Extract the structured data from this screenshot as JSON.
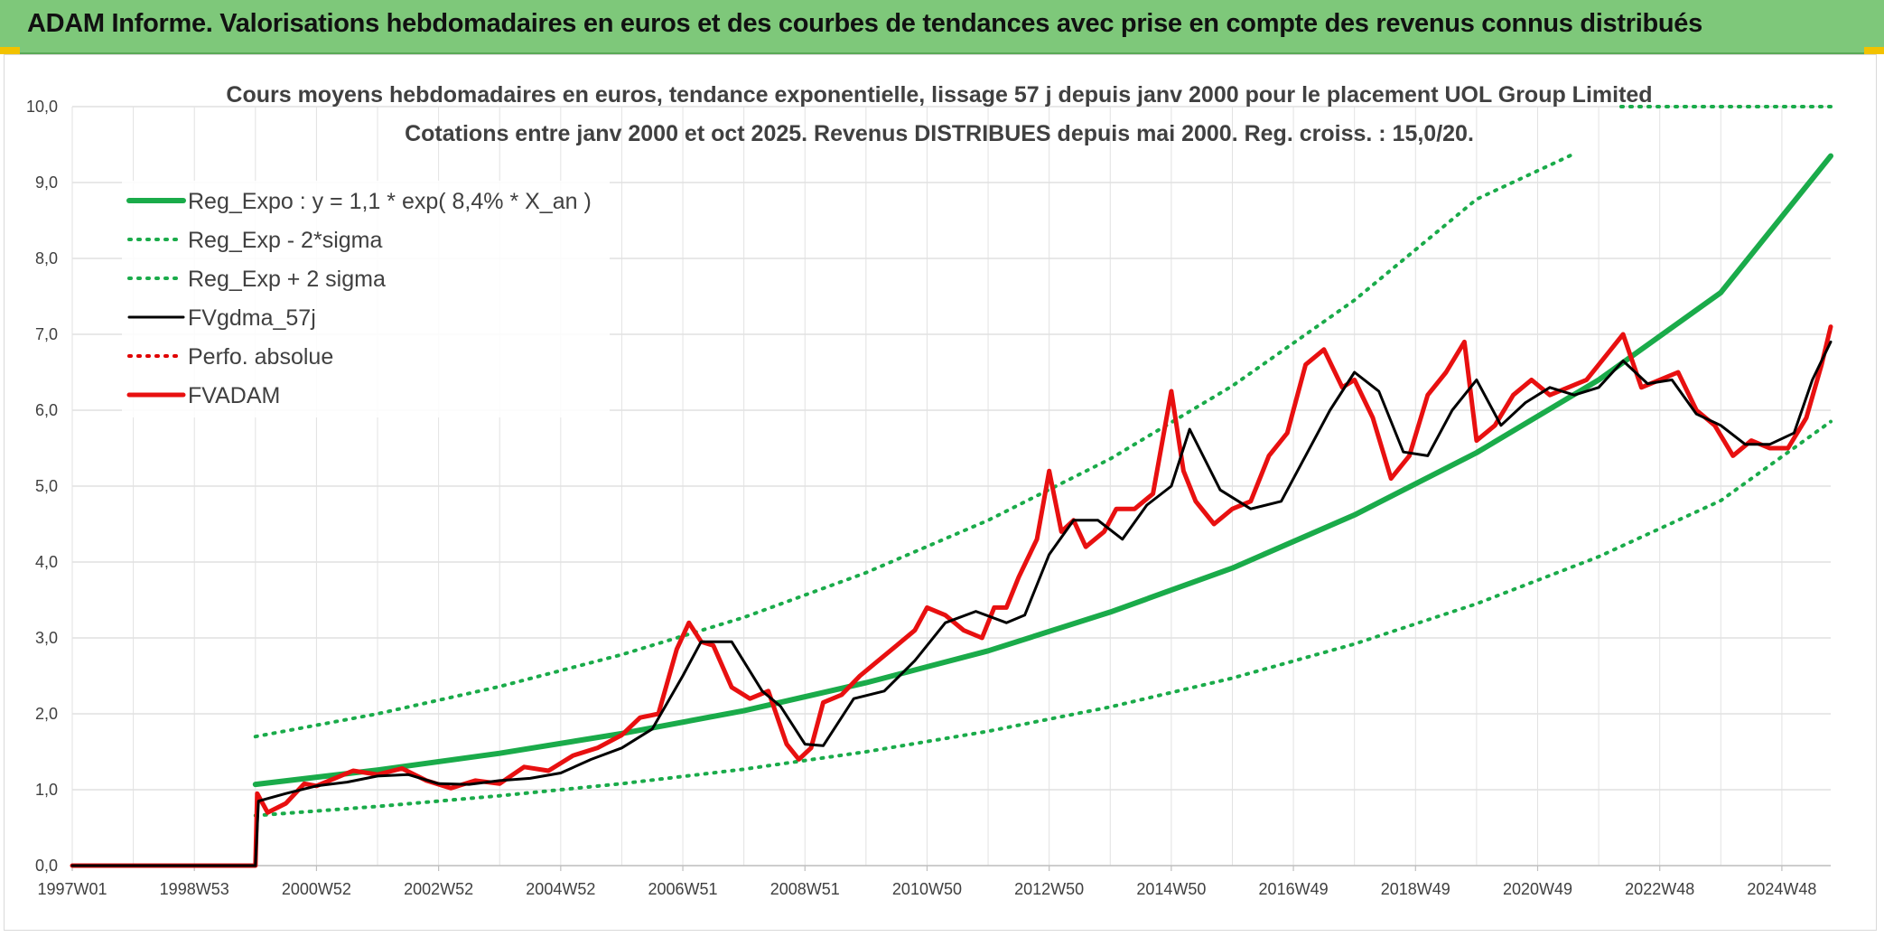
{
  "banner": {
    "title": "ADAM Informe. Valorisations hebdomadaires en euros et des courbes de tendances avec prise en compte des revenus connus distribués"
  },
  "colors": {
    "banner": "#7ec87a",
    "reg_expo": "#1aab4a",
    "band": "#1aab4a",
    "fvgdma": "#000000",
    "perfo": "#e00000",
    "fvadam": "#e81010"
  },
  "chart_data": {
    "type": "line",
    "title": "Cours moyens hebdomadaires en euros, tendance exponentielle, lissage 57 j depuis janv 2000 pour le placement UOL Group Limited",
    "subtitle": "Cotations entre janv 2000 et oct 2025. Revenus DISTRIBUES depuis mai 2000. Reg. croiss. : 15,0/20.",
    "ylim": [
      0,
      10
    ],
    "y_ticks": [
      "0,0",
      "1,0",
      "2,0",
      "3,0",
      "4,0",
      "5,0",
      "6,0",
      "7,0",
      "8,0",
      "9,0",
      "10,0"
    ],
    "x_range": [
      1997.0,
      2025.8
    ],
    "x_ticks": [
      {
        "label": "1997W01",
        "x": 1997.0
      },
      {
        "label": "1998W53",
        "x": 1999.0
      },
      {
        "label": "2000W52",
        "x": 2001.0
      },
      {
        "label": "2002W52",
        "x": 2003.0
      },
      {
        "label": "2004W52",
        "x": 2005.0
      },
      {
        "label": "2006W51",
        "x": 2007.0
      },
      {
        "label": "2008W51",
        "x": 2009.0
      },
      {
        "label": "2010W50",
        "x": 2011.0
      },
      {
        "label": "2012W50",
        "x": 2013.0
      },
      {
        "label": "2014W50",
        "x": 2015.0
      },
      {
        "label": "2016W49",
        "x": 2017.0
      },
      {
        "label": "2018W49",
        "x": 2019.0
      },
      {
        "label": "2020W49",
        "x": 2021.0
      },
      {
        "label": "2022W48",
        "x": 2023.0
      },
      {
        "label": "2024W48",
        "x": 2025.0
      }
    ],
    "grid": true,
    "legend_position": "top-left",
    "series": [
      {
        "name": "Reg_Expo : y = 1,1 * exp( 8,4% *  X_an )",
        "style": "solid-thick",
        "color": "#1aab4a",
        "x": [
          2000.0,
          2002.0,
          2004.0,
          2006.0,
          2008.0,
          2010.0,
          2012.0,
          2014.0,
          2016.0,
          2018.0,
          2020.0,
          2022.0,
          2024.0,
          2025.8
        ],
        "y": [
          1.07,
          1.26,
          1.48,
          1.74,
          2.04,
          2.41,
          2.83,
          3.34,
          3.92,
          4.62,
          5.44,
          6.4,
          7.55,
          9.35
        ]
      },
      {
        "name": "Reg_Exp - 2*sigma",
        "style": "dotted",
        "color": "#1aab4a",
        "x": [
          2000.0,
          2002.0,
          2004.0,
          2006.0,
          2008.0,
          2010.0,
          2012.0,
          2014.0,
          2016.0,
          2018.0,
          2020.0,
          2022.0,
          2024.0,
          2025.8
        ],
        "y": [
          0.66,
          0.78,
          0.92,
          1.08,
          1.27,
          1.5,
          1.77,
          2.09,
          2.47,
          2.92,
          3.45,
          4.07,
          4.81,
          5.85
        ]
      },
      {
        "name": "Reg_Exp + 2 sigma",
        "style": "dotted",
        "color": "#1aab4a",
        "x": [
          2000.0,
          2002.0,
          2004.0,
          2006.0,
          2008.0,
          2010.0,
          2012.0,
          2014.0,
          2016.0,
          2018.0,
          2020.0,
          2021.6
        ],
        "y": [
          1.7,
          2.0,
          2.36,
          2.78,
          3.27,
          3.86,
          4.55,
          5.36,
          6.32,
          7.45,
          8.78,
          9.38
        ]
      },
      {
        "name": "FVgdma_57j",
        "style": "solid",
        "color": "#000000",
        "x": [
          1997.0,
          2000.0,
          2000.05,
          2000.5,
          2001.0,
          2001.5,
          2002.0,
          2002.5,
          2003.0,
          2003.5,
          2004.0,
          2004.5,
          2005.0,
          2005.5,
          2006.0,
          2006.5,
          2007.0,
          2007.3,
          2007.8,
          2008.3,
          2008.6,
          2009.0,
          2009.3,
          2009.8,
          2010.3,
          2010.8,
          2011.3,
          2011.8,
          2012.3,
          2012.6,
          2013.0,
          2013.4,
          2013.8,
          2014.2,
          2014.6,
          2015.0,
          2015.3,
          2015.8,
          2016.3,
          2016.8,
          2017.2,
          2017.6,
          2018.0,
          2018.4,
          2018.8,
          2019.2,
          2019.6,
          2020.0,
          2020.4,
          2020.8,
          2021.2,
          2021.6,
          2022.0,
          2022.4,
          2022.8,
          2023.2,
          2023.6,
          2024.0,
          2024.4,
          2024.8,
          2025.2,
          2025.5,
          2025.8
        ],
        "y": [
          0.0,
          0.0,
          0.85,
          0.95,
          1.05,
          1.1,
          1.18,
          1.2,
          1.08,
          1.07,
          1.12,
          1.15,
          1.22,
          1.4,
          1.55,
          1.8,
          2.5,
          2.95,
          2.95,
          2.3,
          2.1,
          1.6,
          1.58,
          2.2,
          2.3,
          2.7,
          3.2,
          3.35,
          3.2,
          3.3,
          4.1,
          4.55,
          4.55,
          4.3,
          4.75,
          5.0,
          5.75,
          4.95,
          4.7,
          4.8,
          5.4,
          6.0,
          6.5,
          6.25,
          5.45,
          5.4,
          6.0,
          6.4,
          5.8,
          6.1,
          6.3,
          6.2,
          6.3,
          6.65,
          6.35,
          6.4,
          5.95,
          5.8,
          5.55,
          5.55,
          5.7,
          6.4,
          6.9
        ]
      },
      {
        "name": "Perfo. absolue",
        "style": "dotted",
        "color": "#e00000",
        "x": [],
        "y": []
      },
      {
        "name": "FVADAM",
        "style": "solid-thick",
        "color": "#e81010",
        "x": [
          1997.0,
          2000.0,
          2000.03,
          2000.2,
          2000.5,
          2000.8,
          2001.0,
          2001.3,
          2001.6,
          2002.0,
          2002.4,
          2002.8,
          2003.2,
          2003.6,
          2004.0,
          2004.4,
          2004.8,
          2005.2,
          2005.6,
          2006.0,
          2006.3,
          2006.6,
          2006.9,
          2007.1,
          2007.3,
          2007.5,
          2007.8,
          2008.1,
          2008.4,
          2008.7,
          2008.9,
          2009.1,
          2009.3,
          2009.6,
          2009.9,
          2010.2,
          2010.5,
          2010.8,
          2011.0,
          2011.3,
          2011.6,
          2011.9,
          2012.1,
          2012.3,
          2012.5,
          2012.8,
          2013.0,
          2013.2,
          2013.4,
          2013.6,
          2013.9,
          2014.1,
          2014.4,
          2014.7,
          2015.0,
          2015.2,
          2015.4,
          2015.7,
          2016.0,
          2016.3,
          2016.6,
          2016.9,
          2017.2,
          2017.5,
          2017.8,
          2018.0,
          2018.3,
          2018.6,
          2018.9,
          2019.2,
          2019.5,
          2019.8,
          2020.0,
          2020.3,
          2020.6,
          2020.9,
          2021.2,
          2021.5,
          2021.8,
          2022.1,
          2022.4,
          2022.7,
          2023.0,
          2023.3,
          2023.6,
          2023.9,
          2024.2,
          2024.5,
          2024.8,
          2025.1,
          2025.4,
          2025.65,
          2025.8
        ],
        "y": [
          0.0,
          0.0,
          0.95,
          0.7,
          0.82,
          1.08,
          1.05,
          1.15,
          1.25,
          1.2,
          1.28,
          1.12,
          1.02,
          1.12,
          1.08,
          1.3,
          1.25,
          1.45,
          1.55,
          1.72,
          1.95,
          2.0,
          2.85,
          3.2,
          2.95,
          2.9,
          2.35,
          2.2,
          2.3,
          1.6,
          1.4,
          1.55,
          2.15,
          2.25,
          2.5,
          2.7,
          2.9,
          3.1,
          3.4,
          3.3,
          3.1,
          3.0,
          3.4,
          3.4,
          3.8,
          4.3,
          5.2,
          4.4,
          4.55,
          4.2,
          4.4,
          4.7,
          4.7,
          4.9,
          6.25,
          5.2,
          4.8,
          4.5,
          4.7,
          4.8,
          5.4,
          5.7,
          6.6,
          6.8,
          6.3,
          6.4,
          5.9,
          5.1,
          5.4,
          6.2,
          6.5,
          6.9,
          5.6,
          5.8,
          6.2,
          6.4,
          6.2,
          6.3,
          6.4,
          6.7,
          7.0,
          6.3,
          6.4,
          6.5,
          6.0,
          5.8,
          5.4,
          5.6,
          5.5,
          5.5,
          5.9,
          6.6,
          7.1
        ]
      }
    ]
  }
}
